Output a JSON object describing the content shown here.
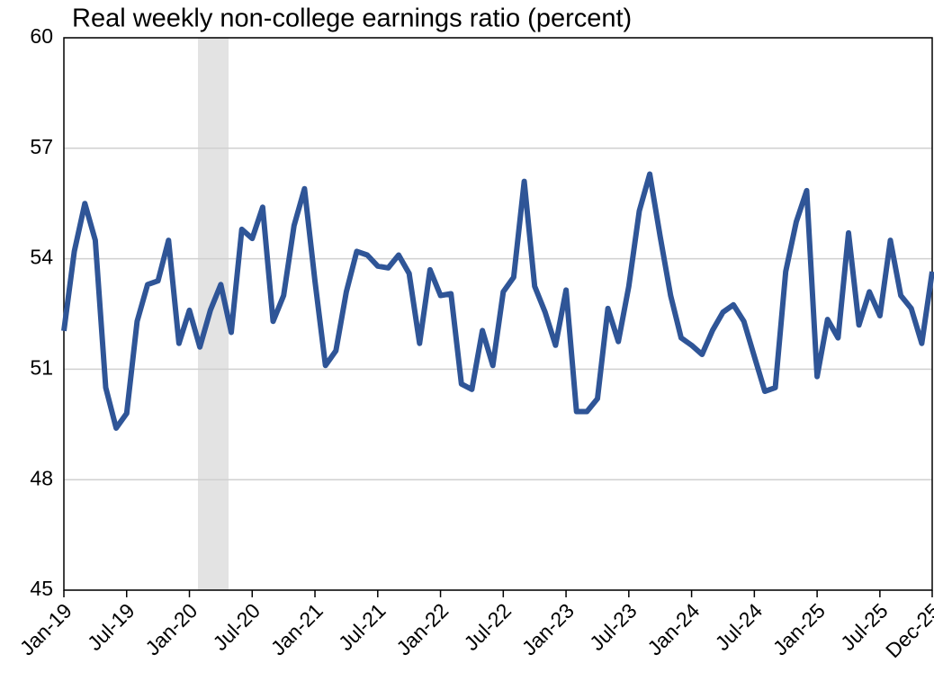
{
  "chart_data": {
    "type": "line",
    "title": "Real weekly non-college earnings ratio (percent)",
    "categories": [
      "Jan-19",
      null,
      null,
      null,
      null,
      null,
      "Jul-19",
      null,
      null,
      null,
      null,
      null,
      "Jan-20",
      null,
      null,
      null,
      null,
      null,
      "Jul-20",
      null,
      null,
      null,
      null,
      null,
      "Jan-21",
      null,
      null,
      null,
      null,
      null,
      "Jul-21",
      null,
      null,
      null,
      null,
      null,
      "Jan-22",
      null,
      null,
      null,
      null,
      null,
      "Jul-22",
      null,
      null,
      null,
      null,
      null,
      "Jan-23",
      null,
      null,
      null,
      null,
      null,
      "Jul-23",
      null,
      null,
      null,
      null,
      null,
      "Jan-24",
      null,
      null,
      null,
      null,
      null,
      "Jul-24",
      null,
      null,
      null,
      null,
      null,
      "Jan-25",
      null,
      null,
      null,
      null,
      null,
      "Jul-25",
      null,
      null,
      null,
      null,
      "Dec-25"
    ],
    "series": [
      {
        "name": "Real weekly non-college earnings ratio",
        "color": "#2f5597",
        "values": [
          52.04,
          54.2,
          55.5,
          54.5,
          50.5,
          49.4,
          49.8,
          52.3,
          53.3,
          53.4,
          54.5,
          51.7,
          52.6,
          51.6,
          52.6,
          53.3,
          52.0,
          54.8,
          54.55,
          55.4,
          52.3,
          53.0,
          54.9,
          55.9,
          53.4,
          51.1,
          51.5,
          53.1,
          54.2,
          54.1,
          53.8,
          53.75,
          54.1,
          53.6,
          51.7,
          53.7,
          53.0,
          53.05,
          50.6,
          50.45,
          52.05,
          51.1,
          53.1,
          53.5,
          56.1,
          53.25,
          52.55,
          51.65,
          53.15,
          49.85,
          49.85,
          50.2,
          52.65,
          51.75,
          53.25,
          55.3,
          56.3,
          54.6,
          53.0,
          51.85,
          51.65,
          51.4,
          52.05,
          52.55,
          52.75,
          52.3,
          51.35,
          50.4,
          50.5,
          53.65,
          55.0,
          55.85,
          50.8,
          52.35,
          51.85,
          54.7,
          52.2,
          53.1,
          52.45,
          54.5,
          53.0,
          52.65,
          51.7,
          53.65
        ]
      }
    ],
    "ylim": [
      45,
      60
    ],
    "yticks": [
      45,
      48,
      51,
      54,
      57,
      60
    ],
    "grid": true
  }
}
